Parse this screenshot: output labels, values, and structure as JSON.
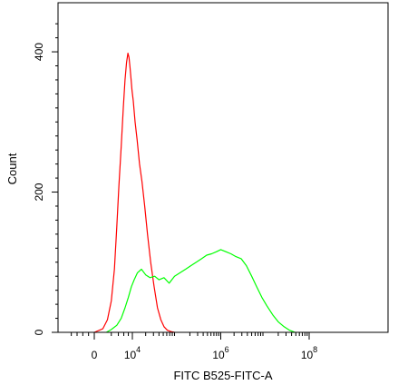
{
  "chart_data": {
    "type": "line",
    "title": "",
    "xlabel": "FITC B525-FITC-A",
    "ylabel": "Count",
    "x_scale": "biexponential",
    "xlim": [
      -15000,
      100000000
    ],
    "ylim": [
      0,
      470
    ],
    "grid": false,
    "legend": "none",
    "x_ticks": [
      {
        "value": 0,
        "label": "0"
      },
      {
        "value": 10000,
        "label": "10",
        "exp": "4"
      },
      {
        "value": 1000000,
        "label": "10",
        "exp": "6"
      },
      {
        "value": 100000000,
        "label": "10",
        "exp": "8"
      }
    ],
    "y_ticks": [
      {
        "value": 0,
        "label": "0"
      },
      {
        "value": 200,
        "label": "200"
      },
      {
        "value": 400,
        "label": "400"
      }
    ],
    "series": [
      {
        "color": "#ff0000",
        "x": [
          0,
          500,
          1200,
          2000,
          2800,
          3500,
          4200,
          5000,
          5800,
          6500,
          7200,
          7800,
          8300,
          8800,
          9300,
          9800,
          10500,
          11500,
          12800,
          14500,
          16500,
          19000,
          22000,
          26000,
          31000,
          37000,
          44000,
          52000,
          62000,
          75000,
          90000
        ],
        "values": [
          0,
          5,
          18,
          45,
          90,
          150,
          210,
          265,
          320,
          360,
          385,
          398,
          392,
          378,
          362,
          345,
          330,
          300,
          275,
          240,
          215,
          180,
          140,
          100,
          65,
          35,
          18,
          8,
          3,
          1,
          0
        ]
      },
      {
        "color": "#00ff00",
        "x": [
          1000,
          2000,
          3500,
          5000,
          6500,
          8000,
          9500,
          11000,
          13000,
          16000,
          20000,
          25000,
          32000,
          40000,
          52000,
          68000,
          90000,
          120000,
          160000,
          210000,
          280000,
          370000,
          480000,
          620000,
          800000,
          1000000,
          1300000,
          1700000,
          2200000,
          2900000,
          3800000,
          5000000,
          6500000,
          8500000,
          11000000,
          15000000,
          20000000,
          27000000,
          36000000,
          48000000
        ],
        "values": [
          0,
          4,
          10,
          20,
          35,
          50,
          65,
          75,
          85,
          90,
          82,
          78,
          80,
          75,
          78,
          70,
          80,
          85,
          90,
          95,
          100,
          105,
          110,
          112,
          115,
          118,
          115,
          112,
          108,
          105,
          95,
          80,
          65,
          50,
          38,
          25,
          15,
          8,
          3,
          0
        ]
      }
    ]
  }
}
